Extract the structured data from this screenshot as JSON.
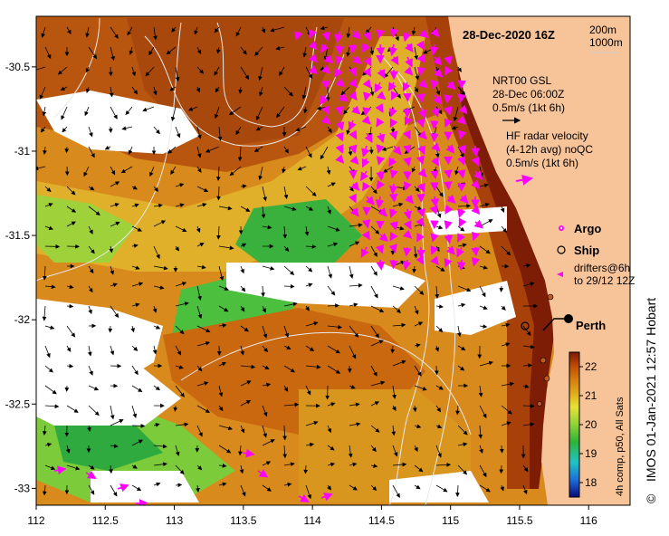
{
  "map": {
    "date_title": "28-Dec-2020 16Z",
    "x_ticks": [
      "112",
      "112.5",
      "113",
      "113.5",
      "114",
      "114.5",
      "115",
      "115.5",
      "116"
    ],
    "y_ticks": [
      "-30.5",
      "-31",
      "-31.5",
      "-32",
      "-32.5",
      "-33"
    ],
    "place_label": "Perth",
    "credit": "IMOS 01-Jan-2021 12:57 Hobart",
    "copyright_symbol": "©",
    "land_color": "#f7c49a",
    "cloud_color": "#ffffff"
  },
  "bathymetry_legend": {
    "line1": "200m",
    "line2": "1000m"
  },
  "gsl_legend": {
    "line1": "NRT00 GSL",
    "line2": "28-Dec 06:00Z",
    "line3": "0.5m/s (1kt 6h)"
  },
  "hf_radar_legend": {
    "line1": "HF radar velocity",
    "line2": "(4-12h avg) noQC",
    "line3": "0.5m/s (1kt 6h)",
    "color": "#ff00ff"
  },
  "markers": {
    "argo_label": "Argo",
    "ship_label": "Ship",
    "drifters_line1": "drifters@6h",
    "drifters_line2": "to 29/12 12Z"
  },
  "colorbar": {
    "ticks": [
      "22",
      "21",
      "20",
      "19",
      "18"
    ],
    "title": "4h comp, p50, All Sats",
    "vmin": 17.5,
    "vmax": 22.5
  }
}
